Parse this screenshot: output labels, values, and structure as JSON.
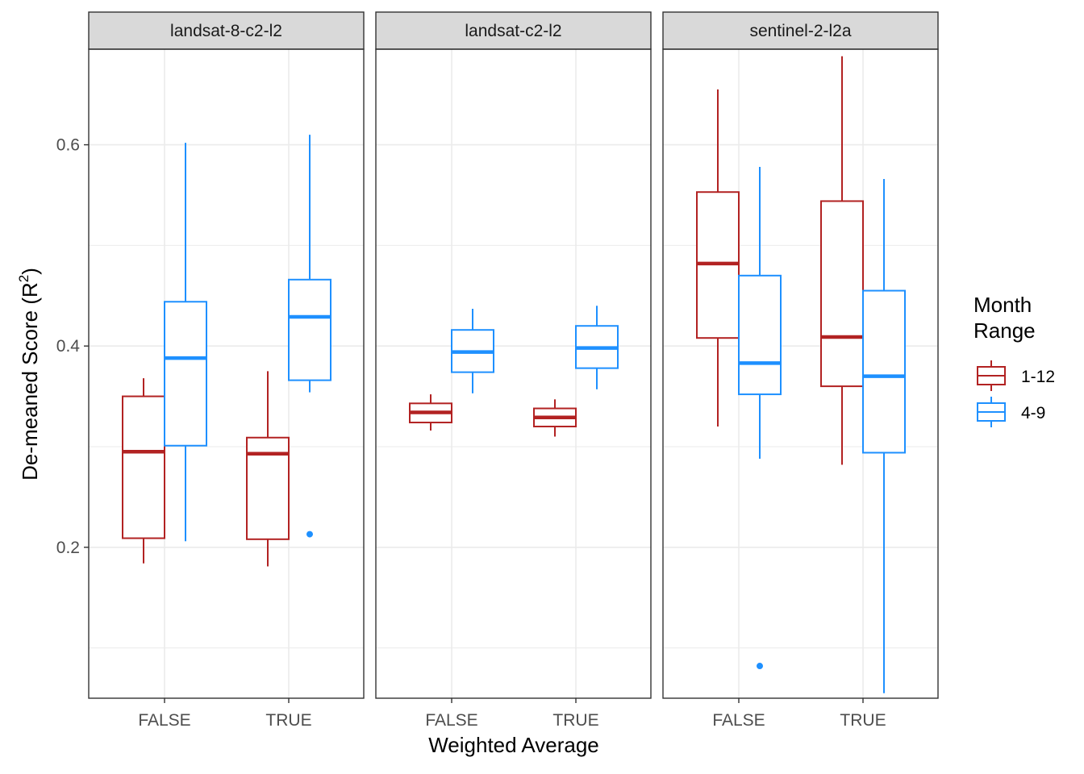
{
  "chart_data": {
    "type": "boxplot",
    "xlabel": "Weighted Average",
    "ylabel": "De-meaned Score (R",
    "ylabel_sup": "2",
    "ylabel_close": ")",
    "categories": [
      "FALSE",
      "TRUE"
    ],
    "yticks": [
      0.2,
      0.4,
      0.6
    ],
    "ytick_labels": [
      "0.2",
      "0.4",
      "0.6"
    ],
    "yminor": [
      0.1,
      0.3,
      0.5
    ],
    "ylim": [
      0.05,
      0.695
    ],
    "grid": true,
    "legend": {
      "title_line1": "Month",
      "title_line2": "Range",
      "placement": "right",
      "entries": [
        {
          "label": "1-12",
          "color": "#B22222"
        },
        {
          "label": "4-9",
          "color": "#1E90FF"
        }
      ]
    },
    "series_colors": {
      "1-12": "#B22222",
      "4-9": "#1E90FF"
    },
    "panels": [
      {
        "strip": "landsat-8-c2-l2",
        "boxes": [
          {
            "category": "FALSE",
            "series": "1-12",
            "min": 0.184,
            "q1": 0.209,
            "median": 0.295,
            "q3": 0.35,
            "max": 0.368,
            "outliers": []
          },
          {
            "category": "FALSE",
            "series": "4-9",
            "min": 0.206,
            "q1": 0.301,
            "median": 0.388,
            "q3": 0.444,
            "max": 0.602,
            "outliers": []
          },
          {
            "category": "TRUE",
            "series": "1-12",
            "min": 0.181,
            "q1": 0.208,
            "median": 0.293,
            "q3": 0.309,
            "max": 0.375,
            "outliers": []
          },
          {
            "category": "TRUE",
            "series": "4-9",
            "min": 0.354,
            "q1": 0.366,
            "median": 0.429,
            "q3": 0.466,
            "max": 0.61,
            "outliers": [
              0.213
            ]
          }
        ]
      },
      {
        "strip": "landsat-c2-l2",
        "boxes": [
          {
            "category": "FALSE",
            "series": "1-12",
            "min": 0.316,
            "q1": 0.324,
            "median": 0.334,
            "q3": 0.343,
            "max": 0.352,
            "outliers": []
          },
          {
            "category": "FALSE",
            "series": "4-9",
            "min": 0.353,
            "q1": 0.374,
            "median": 0.394,
            "q3": 0.416,
            "max": 0.437,
            "outliers": []
          },
          {
            "category": "TRUE",
            "series": "1-12",
            "min": 0.31,
            "q1": 0.32,
            "median": 0.329,
            "q3": 0.338,
            "max": 0.347,
            "outliers": []
          },
          {
            "category": "TRUE",
            "series": "4-9",
            "min": 0.357,
            "q1": 0.378,
            "median": 0.398,
            "q3": 0.42,
            "max": 0.44,
            "outliers": []
          }
        ]
      },
      {
        "strip": "sentinel-2-l2a",
        "boxes": [
          {
            "category": "FALSE",
            "series": "1-12",
            "min": 0.32,
            "q1": 0.408,
            "median": 0.482,
            "q3": 0.553,
            "max": 0.655,
            "outliers": []
          },
          {
            "category": "FALSE",
            "series": "4-9",
            "min": 0.288,
            "q1": 0.352,
            "median": 0.383,
            "q3": 0.47,
            "max": 0.578,
            "outliers": [
              0.082
            ]
          },
          {
            "category": "TRUE",
            "series": "1-12",
            "min": 0.282,
            "q1": 0.36,
            "median": 0.409,
            "q3": 0.544,
            "max": 0.688,
            "outliers": []
          },
          {
            "category": "TRUE",
            "series": "4-9",
            "min": 0.055,
            "q1": 0.294,
            "median": 0.37,
            "q3": 0.455,
            "max": 0.566,
            "outliers": []
          }
        ]
      }
    ]
  }
}
